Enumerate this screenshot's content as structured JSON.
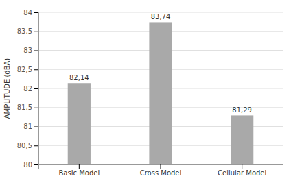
{
  "chart_data": {
    "type": "bar",
    "categories": [
      "Basic Model",
      "Cross Model",
      "Cellular Model"
    ],
    "values": [
      82.14,
      83.74,
      81.29
    ],
    "value_labels": [
      "82,14",
      "83,74",
      "81,29"
    ],
    "data_labels": true,
    "color": "#a9a9a9",
    "ylabel": "AMPLITUDE (dBA)",
    "ylim": [
      80,
      84
    ],
    "yticks": [
      80,
      {
        "value": 80.5,
        "label": "80,5"
      },
      81,
      {
        "value": 81.5,
        "label": "81,5"
      },
      82,
      {
        "value": 82.5,
        "label": "82,5"
      },
      83,
      {
        "value": 83.5,
        "label": "83,5"
      },
      84
    ],
    "grid": true
  }
}
